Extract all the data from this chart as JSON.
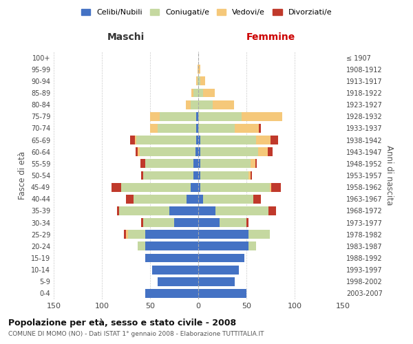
{
  "age_groups": [
    "100+",
    "95-99",
    "90-94",
    "85-89",
    "80-84",
    "75-79",
    "70-74",
    "65-69",
    "60-64",
    "55-59",
    "50-54",
    "45-49",
    "40-44",
    "35-39",
    "30-34",
    "25-29",
    "20-24",
    "15-19",
    "10-14",
    "5-9",
    "0-4"
  ],
  "birth_years": [
    "≤ 1907",
    "1908-1912",
    "1913-1917",
    "1918-1922",
    "1923-1927",
    "1928-1932",
    "1933-1937",
    "1938-1942",
    "1943-1947",
    "1948-1952",
    "1953-1957",
    "1958-1962",
    "1963-1967",
    "1968-1972",
    "1973-1977",
    "1978-1982",
    "1983-1987",
    "1988-1992",
    "1993-1997",
    "1998-2002",
    "2003-2007"
  ],
  "male": {
    "celibi": [
      0,
      0,
      0,
      0,
      0,
      2,
      2,
      2,
      3,
      5,
      5,
      8,
      12,
      30,
      25,
      55,
      55,
      55,
      48,
      42,
      55
    ],
    "coniugati": [
      0,
      0,
      1,
      5,
      8,
      38,
      40,
      62,
      58,
      50,
      52,
      72,
      55,
      52,
      32,
      18,
      8,
      0,
      0,
      0,
      0
    ],
    "vedovi": [
      0,
      1,
      1,
      2,
      5,
      10,
      8,
      2,
      2,
      0,
      0,
      0,
      0,
      0,
      0,
      2,
      0,
      0,
      0,
      0,
      0
    ],
    "divorziati": [
      0,
      0,
      0,
      0,
      0,
      0,
      0,
      5,
      2,
      5,
      2,
      10,
      8,
      2,
      2,
      2,
      0,
      0,
      0,
      0,
      0
    ]
  },
  "female": {
    "nubili": [
      0,
      0,
      0,
      0,
      0,
      0,
      0,
      2,
      2,
      2,
      2,
      2,
      5,
      18,
      22,
      52,
      52,
      48,
      42,
      38,
      50
    ],
    "coniugate": [
      0,
      0,
      2,
      5,
      15,
      45,
      38,
      58,
      60,
      52,
      50,
      72,
      52,
      55,
      28,
      22,
      8,
      0,
      0,
      0,
      0
    ],
    "vedove": [
      0,
      2,
      5,
      12,
      22,
      42,
      25,
      15,
      10,
      5,
      2,
      2,
      0,
      0,
      0,
      0,
      0,
      0,
      0,
      0,
      0
    ],
    "divorziate": [
      0,
      0,
      0,
      0,
      0,
      0,
      2,
      8,
      5,
      2,
      2,
      10,
      8,
      8,
      2,
      0,
      0,
      0,
      0,
      0,
      0
    ]
  },
  "colors": {
    "celibi_nubili": "#4472c4",
    "coniugati": "#c5d8a0",
    "vedovi": "#f5c87a",
    "divorziati": "#c0392b"
  },
  "title": "Popolazione per età, sesso e stato civile - 2008",
  "subtitle": "COMUNE DI MOMO (NO) - Dati ISTAT 1° gennaio 2008 - Elaborazione TUTTITALIA.IT",
  "xlabel_left": "Maschi",
  "xlabel_right": "Femmine",
  "ylabel_left": "Fasce di età",
  "ylabel_right": "Anni di nascita",
  "xlim": 150,
  "legend_labels": [
    "Celibi/Nubili",
    "Coniugati/e",
    "Vedovi/e",
    "Divorziati/e"
  ],
  "background_color": "#ffffff",
  "grid_color": "#cccccc"
}
